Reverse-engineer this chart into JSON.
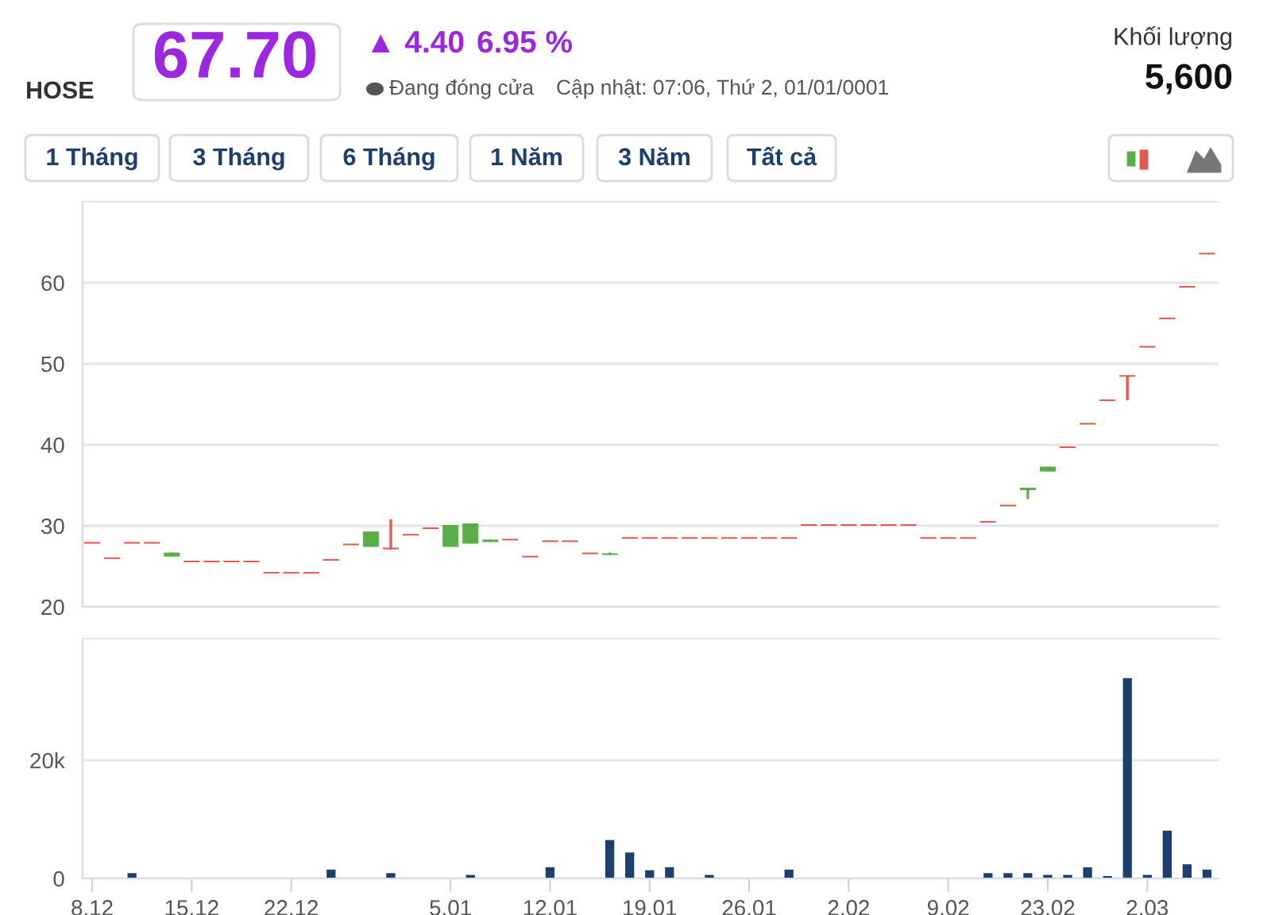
{
  "chart_data": [
    {
      "type": "other",
      "annotations": [
        "HOSE",
        "67.70",
        "▲ 4.40",
        "6.95 %",
        "Đang đóng cửa",
        "Cập nhật: 07:06, Thứ 2, 01/01/0001",
        "Khối lượng",
        "5,600",
        "1 Tháng",
        "3 Tháng",
        "6 Tháng",
        "1 Năm",
        "3 Năm",
        "Tất cả"
      ]
    },
    {
      "type": "candlestick",
      "categories": [
        "8.12",
        null,
        null,
        null,
        null,
        "15.12",
        null,
        null,
        null,
        null,
        "22.12",
        null,
        null,
        null,
        null,
        null,
        null,
        null,
        "5.01",
        null,
        null,
        null,
        null,
        "12.01",
        null,
        null,
        null,
        null,
        "19.01",
        null,
        null,
        null,
        null,
        "26.01",
        null,
        null,
        null,
        null,
        "2.02",
        null,
        null,
        null,
        null,
        "9.02",
        null,
        null,
        null,
        null,
        "23.02",
        null,
        null,
        null,
        null,
        "2.03",
        null,
        null,
        null
      ],
      "ohlc": [
        [
          27.8,
          27.8,
          27.8,
          27.8
        ],
        [
          25.9,
          25.9,
          25.9,
          25.9
        ],
        [
          27.8,
          27.8,
          27.8,
          27.8
        ],
        [
          27.8,
          27.8,
          27.8,
          27.8
        ],
        [
          26.2,
          26.7,
          26.2,
          26.7
        ],
        [
          25.5,
          25.5,
          25.5,
          25.5
        ],
        [
          25.5,
          25.5,
          25.5,
          25.5
        ],
        [
          25.5,
          25.5,
          25.5,
          25.5
        ],
        [
          25.5,
          25.5,
          25.5,
          25.5
        ],
        [
          24.1,
          24.1,
          24.1,
          24.1
        ],
        [
          24.1,
          24.1,
          24.1,
          24.1
        ],
        [
          24.1,
          24.1,
          24.1,
          24.1
        ],
        [
          25.7,
          25.7,
          25.7,
          25.7
        ],
        [
          27.6,
          27.6,
          27.6,
          27.6
        ],
        [
          27.4,
          29.3,
          27.4,
          29.3
        ],
        [
          27.1,
          30.8,
          27.1,
          27.1
        ],
        [
          28.8,
          28.8,
          28.8,
          28.8
        ],
        [
          29.6,
          29.6,
          29.6,
          29.6
        ],
        [
          27.4,
          30.1,
          27.4,
          30.1
        ],
        [
          27.8,
          30.3,
          27.8,
          30.3
        ],
        [
          28.0,
          28.3,
          28.0,
          28.3
        ],
        [
          28.2,
          28.2,
          28.2,
          28.2
        ],
        [
          26.1,
          26.1,
          26.1,
          26.1
        ],
        [
          28.0,
          28.0,
          28.0,
          28.0
        ],
        [
          28.0,
          28.0,
          28.0,
          28.0
        ],
        [
          26.5,
          26.5,
          26.5,
          26.5
        ],
        [
          26.4,
          26.7,
          26.4,
          26.5
        ],
        [
          28.4,
          28.4,
          28.4,
          28.4
        ],
        [
          28.4,
          28.4,
          28.4,
          28.4
        ],
        [
          28.4,
          28.4,
          28.4,
          28.4
        ],
        [
          28.4,
          28.4,
          28.4,
          28.4
        ],
        [
          28.4,
          28.4,
          28.4,
          28.4
        ],
        [
          28.4,
          28.4,
          28.4,
          28.4
        ],
        [
          28.4,
          28.4,
          28.4,
          28.4
        ],
        [
          28.4,
          28.4,
          28.4,
          28.4
        ],
        [
          28.4,
          28.4,
          28.4,
          28.4
        ],
        [
          30.0,
          30.0,
          30.0,
          30.0
        ],
        [
          30.0,
          30.0,
          30.0,
          30.0
        ],
        [
          30.0,
          30.0,
          30.0,
          30.0
        ],
        [
          30.0,
          30.0,
          30.0,
          30.0
        ],
        [
          30.0,
          30.0,
          30.0,
          30.0
        ],
        [
          30.0,
          30.0,
          30.0,
          30.0
        ],
        [
          28.4,
          28.4,
          28.4,
          28.4
        ],
        [
          28.4,
          28.4,
          28.4,
          28.4
        ],
        [
          28.4,
          28.4,
          28.4,
          28.4
        ],
        [
          30.4,
          30.4,
          30.4,
          30.4
        ],
        [
          32.4,
          32.4,
          32.4,
          32.4
        ],
        [
          34.4,
          34.7,
          33.3,
          34.7
        ],
        [
          36.7,
          37.3,
          36.7,
          37.3
        ],
        [
          39.6,
          39.6,
          39.6,
          39.6
        ],
        [
          42.5,
          42.5,
          42.5,
          42.5
        ],
        [
          45.4,
          45.4,
          45.4,
          45.4
        ],
        [
          48.5,
          48.5,
          45.5,
          48.4
        ],
        [
          52.0,
          52.0,
          52.0,
          52.0
        ],
        [
          55.5,
          55.5,
          55.5,
          55.5
        ],
        [
          59.4,
          59.4,
          59.4,
          59.4
        ],
        [
          63.5,
          63.5,
          63.5,
          63.5
        ]
      ],
      "colors": [
        "#e05a4f",
        "#e05a4f",
        "#e05a4f",
        "#e05a4f",
        "#5aaf48",
        "#e05a4f",
        "#e05a4f",
        "#e05a4f",
        "#e05a4f",
        "#e05a4f",
        "#e05a4f",
        "#e05a4f",
        "#e05a4f",
        "#e05a4f",
        "#5aaf48",
        "#e05a4f",
        "#e05a4f",
        "#e05a4f",
        "#5aaf48",
        "#5aaf48",
        "#5aaf48",
        "#e05a4f",
        "#e05a4f",
        "#e05a4f",
        "#e05a4f",
        "#e05a4f",
        "#5aaf48",
        "#e05a4f",
        "#e05a4f",
        "#e05a4f",
        "#e05a4f",
        "#e05a4f",
        "#e05a4f",
        "#e05a4f",
        "#e05a4f",
        "#e05a4f",
        "#e05a4f",
        "#e05a4f",
        "#e05a4f",
        "#e05a4f",
        "#e05a4f",
        "#e05a4f",
        "#e05a4f",
        "#e05a4f",
        "#e05a4f",
        "#e05a4f",
        "#e05a4f",
        "#5aaf48",
        "#5aaf48",
        "#e05a4f",
        "#e05a4f",
        "#e05a4f",
        "#e05a4f",
        "#e05a4f",
        "#e05a4f",
        "#e05a4f",
        "#e05a4f"
      ],
      "ylim": [
        20,
        70
      ],
      "yticks": [
        20,
        30,
        40,
        50,
        60
      ],
      "grid": "y",
      "tick_labels": "y"
    },
    {
      "type": "bar",
      "categories": [
        "8.12",
        null,
        null,
        null,
        null,
        "15.12",
        null,
        null,
        null,
        null,
        "22.12",
        null,
        null,
        null,
        null,
        null,
        null,
        null,
        "5.01",
        null,
        null,
        null,
        null,
        "12.01",
        null,
        null,
        null,
        null,
        "19.01",
        null,
        null,
        null,
        null,
        "26.01",
        null,
        null,
        null,
        null,
        "2.02",
        null,
        null,
        null,
        null,
        "9.02",
        null,
        null,
        null,
        null,
        "23.02",
        null,
        null,
        null,
        null,
        "2.03",
        null,
        null,
        null
      ],
      "series": [
        {
          "color": "#1d3f6b",
          "values": [
            null,
            null,
            900,
            null,
            null,
            null,
            null,
            null,
            null,
            null,
            null,
            null,
            1500,
            null,
            null,
            900,
            null,
            null,
            null,
            600,
            null,
            null,
            null,
            1900,
            null,
            null,
            6500,
            4400,
            1400,
            1900,
            null,
            600,
            null,
            null,
            null,
            1500,
            null,
            null,
            null,
            null,
            null,
            null,
            null,
            null,
            null,
            900,
            900,
            900,
            600,
            600,
            1900,
            400,
            33900,
            600,
            8100,
            2400,
            1500
          ]
        }
      ],
      "ylim": [
        0,
        40600
      ],
      "yticks": [
        0,
        {
          "value": 20000,
          "label": "20k"
        }
      ],
      "grid": "y"
    }
  ]
}
